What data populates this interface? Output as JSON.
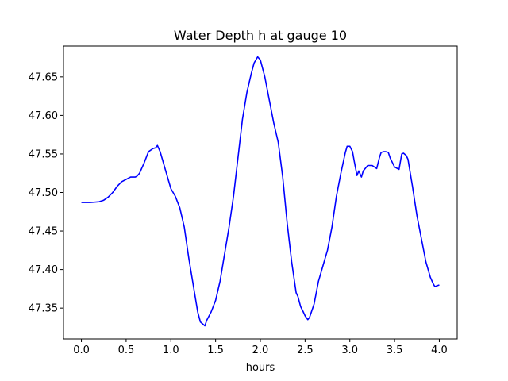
{
  "chart_data": {
    "type": "line",
    "title": "Water Depth h at gauge 10",
    "xlabel": "hours",
    "ylabel": "",
    "xlim": [
      -0.2,
      4.2
    ],
    "ylim": [
      47.31,
      47.69
    ],
    "xticks": [
      0.0,
      0.5,
      1.0,
      1.5,
      2.0,
      2.5,
      3.0,
      3.5,
      4.0
    ],
    "xtick_labels": [
      "0.0",
      "0.5",
      "1.0",
      "1.5",
      "2.0",
      "2.5",
      "3.0",
      "3.5",
      "4.0"
    ],
    "yticks": [
      47.35,
      47.4,
      47.45,
      47.5,
      47.55,
      47.6,
      47.65
    ],
    "ytick_labels": [
      "47.35",
      "47.40",
      "47.45",
      "47.50",
      "47.55",
      "47.60",
      "47.65"
    ],
    "grid": false,
    "series": [
      {
        "color": "#0000ff",
        "x": [
          0.0,
          0.1,
          0.2,
          0.25,
          0.3,
          0.35,
          0.4,
          0.45,
          0.5,
          0.55,
          0.6,
          0.62,
          0.65,
          0.7,
          0.75,
          0.8,
          0.83,
          0.85,
          0.88,
          0.9,
          0.95,
          1.0,
          1.05,
          1.1,
          1.15,
          1.2,
          1.25,
          1.3,
          1.33,
          1.38,
          1.4,
          1.45,
          1.5,
          1.55,
          1.6,
          1.65,
          1.7,
          1.75,
          1.8,
          1.85,
          1.9,
          1.93,
          1.97,
          2.0,
          2.05,
          2.1,
          2.15,
          2.2,
          2.25,
          2.3,
          2.35,
          2.4,
          2.42,
          2.45,
          2.48,
          2.5,
          2.53,
          2.55,
          2.6,
          2.65,
          2.7,
          2.75,
          2.8,
          2.85,
          2.9,
          2.95,
          2.97,
          3.0,
          3.03,
          3.05,
          3.08,
          3.1,
          3.13,
          3.15,
          3.2,
          3.25,
          3.3,
          3.33,
          3.35,
          3.38,
          3.4,
          3.43,
          3.45,
          3.5,
          3.55,
          3.58,
          3.6,
          3.63,
          3.65,
          3.7,
          3.75,
          3.8,
          3.85,
          3.9,
          3.93,
          3.95,
          4.0
        ],
        "y": [
          47.487,
          47.487,
          47.488,
          47.49,
          47.494,
          47.5,
          47.508,
          47.514,
          47.517,
          47.52,
          47.52,
          47.521,
          47.525,
          47.538,
          47.553,
          47.557,
          47.558,
          47.561,
          47.553,
          47.545,
          47.525,
          47.505,
          47.495,
          47.48,
          47.455,
          47.415,
          47.38,
          47.345,
          47.332,
          47.327,
          47.334,
          47.345,
          47.36,
          47.385,
          47.42,
          47.455,
          47.495,
          47.545,
          47.595,
          47.63,
          47.655,
          47.668,
          47.676,
          47.672,
          47.65,
          47.62,
          47.59,
          47.565,
          47.52,
          47.46,
          47.41,
          47.37,
          47.365,
          47.352,
          47.345,
          47.34,
          47.335,
          47.338,
          47.355,
          47.385,
          47.405,
          47.425,
          47.455,
          47.495,
          47.525,
          47.552,
          47.56,
          47.56,
          47.553,
          47.54,
          47.522,
          47.528,
          47.52,
          47.528,
          47.535,
          47.535,
          47.531,
          47.545,
          47.552,
          47.553,
          47.553,
          47.552,
          47.545,
          47.533,
          47.53,
          47.55,
          47.551,
          47.548,
          47.543,
          47.508,
          47.47,
          47.44,
          47.41,
          47.39,
          47.382,
          47.378,
          47.38
        ]
      }
    ]
  }
}
